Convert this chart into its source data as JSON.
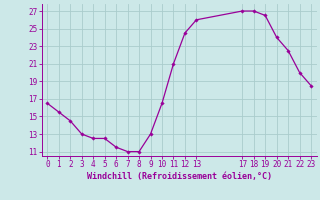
{
  "x": [
    0,
    1,
    2,
    3,
    4,
    5,
    6,
    7,
    8,
    9,
    10,
    11,
    12,
    13,
    17,
    18,
    19,
    20,
    21,
    22,
    23
  ],
  "y": [
    16.5,
    15.5,
    14.5,
    13.0,
    12.5,
    12.5,
    11.5,
    11.0,
    11.0,
    13.0,
    16.5,
    21.0,
    24.5,
    26.0,
    27.0,
    27.0,
    26.5,
    24.0,
    22.5,
    20.0,
    18.5
  ],
  "line_color": "#990099",
  "marker": "D",
  "marker_size": 1.8,
  "background_color": "#cce8e8",
  "grid_color": "#aacccc",
  "xlabel": "Windchill (Refroidissement éolien,°C)",
  "xlabel_fontsize": 6,
  "tick_fontsize": 5.5,
  "ylim": [
    10.5,
    27.8
  ],
  "xlim": [
    -0.5,
    23.5
  ],
  "yticks": [
    11,
    13,
    15,
    17,
    19,
    21,
    23,
    25,
    27
  ],
  "xticks": [
    0,
    1,
    2,
    3,
    4,
    5,
    6,
    7,
    8,
    9,
    10,
    11,
    12,
    13,
    17,
    18,
    19,
    20,
    21,
    22,
    23
  ]
}
